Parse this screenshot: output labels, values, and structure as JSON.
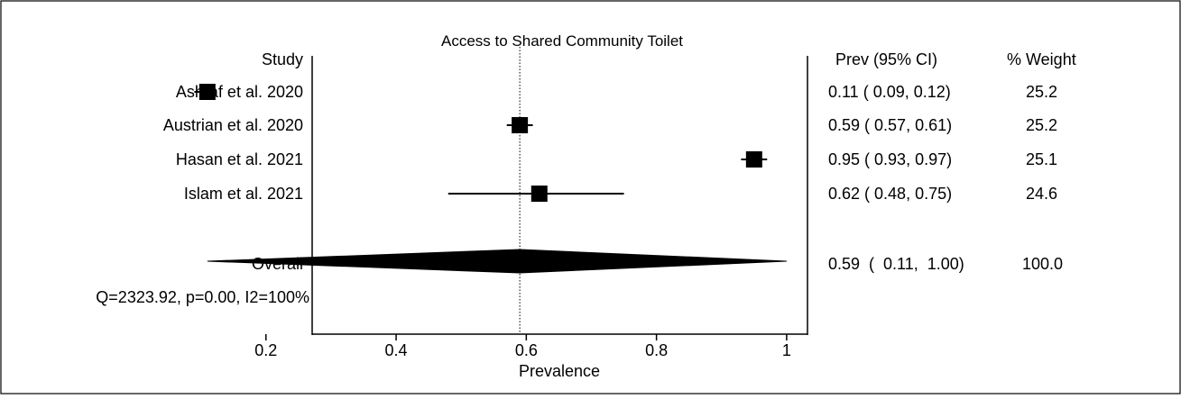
{
  "chart_data": {
    "type": "forest",
    "title": "Access to Shared Community Toilet",
    "xlabel": "Prevalence",
    "xlim": [
      0.05,
      1.05
    ],
    "xticks": [
      "0.2",
      "0.4",
      "0.6",
      "0.8",
      "1"
    ],
    "xtick_values": [
      0.2,
      0.4,
      0.6,
      0.8,
      1.0
    ],
    "reference_line": 0.59,
    "column_headers": {
      "study": "Study",
      "estimate": "Prev (95% CI)",
      "weight": "% Weight"
    },
    "studies": [
      {
        "label": "Ashraf et al. 2020",
        "prev": 0.11,
        "lower": 0.09,
        "upper": 0.12,
        "ci_text": "0.11  (  0.09,  0.12)",
        "weight": 25.2,
        "weight_text": "25.2"
      },
      {
        "label": "Austrian et al. 2020",
        "prev": 0.59,
        "lower": 0.57,
        "upper": 0.61,
        "ci_text": "0.59  (  0.57,  0.61)",
        "weight": 25.2,
        "weight_text": "25.2"
      },
      {
        "label": "Hasan et al. 2021",
        "prev": 0.95,
        "lower": 0.93,
        "upper": 0.97,
        "ci_text": "0.95  (  0.93,  0.97)",
        "weight": 25.1,
        "weight_text": "25.1"
      },
      {
        "label": "Islam et al. 2021",
        "prev": 0.62,
        "lower": 0.48,
        "upper": 0.75,
        "ci_text": "0.62  (  0.48,  0.75)",
        "weight": 24.6,
        "weight_text": "24.6"
      }
    ],
    "overall": {
      "label": "Overall",
      "prev": 0.59,
      "lower": 0.11,
      "upper": 1.0,
      "ci_text": "0.59  (  0.11,  1.00)",
      "weight_text": "100.0"
    },
    "heterogeneity": "Q=2323.92, p=0.00, I2=100%"
  }
}
